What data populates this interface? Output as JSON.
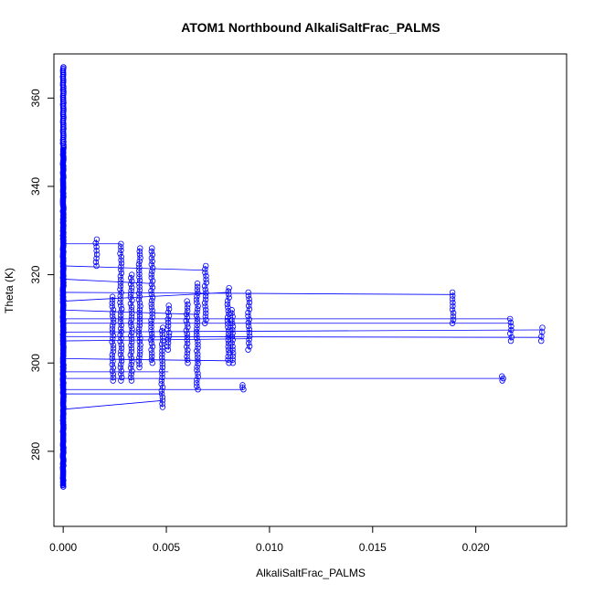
{
  "chart_data": {
    "type": "scatter",
    "title": "ATOM1 Northbound AlkaliSaltFrac_PALMS",
    "xlabel": "AlkaliSaltFrac_PALMS",
    "ylabel": "Theta (K)",
    "xlim": [
      -0.00045,
      0.0244
    ],
    "ylim": [
      263,
      370
    ],
    "x_ticks": [
      0.0,
      0.005,
      0.01,
      0.015,
      0.02
    ],
    "x_tick_labels": [
      "0.000",
      "0.005",
      "0.010",
      "0.015",
      "0.020"
    ],
    "y_ticks": [
      280,
      300,
      320,
      340,
      360
    ],
    "y_tick_labels": [
      "280",
      "300",
      "320",
      "340",
      "360"
    ],
    "series_color": "#0000ff",
    "marker": "open-circle",
    "connected": true,
    "grid": false,
    "zero_column": {
      "x": 0.0,
      "y_min": 272,
      "y_max": 367
    },
    "clusters": [
      {
        "x": 0.0016,
        "y_min": 322,
        "y_max": 328
      },
      {
        "x": 0.0024,
        "y_min": 296,
        "y_max": 315
      },
      {
        "x": 0.0028,
        "y_min": 296,
        "y_max": 327
      },
      {
        "x": 0.0033,
        "y_min": 296,
        "y_max": 320
      },
      {
        "x": 0.0037,
        "y_min": 299,
        "y_max": 326
      },
      {
        "x": 0.0043,
        "y_min": 300,
        "y_max": 326
      },
      {
        "x": 0.0048,
        "y_min": 290,
        "y_max": 308
      },
      {
        "x": 0.0051,
        "y_min": 303,
        "y_max": 313
      },
      {
        "x": 0.006,
        "y_min": 300,
        "y_max": 314
      },
      {
        "x": 0.0065,
        "y_min": 294,
        "y_max": 318
      },
      {
        "x": 0.0069,
        "y_min": 309,
        "y_max": 322
      },
      {
        "x": 0.008,
        "y_min": 300,
        "y_max": 317
      },
      {
        "x": 0.0082,
        "y_min": 300,
        "y_max": 312
      },
      {
        "x": 0.0087,
        "y_min": 294,
        "y_max": 295
      },
      {
        "x": 0.009,
        "y_min": 303,
        "y_max": 316
      },
      {
        "x": 0.0189,
        "y_min": 309,
        "y_max": 316
      },
      {
        "x": 0.0213,
        "y_min": 296,
        "y_max": 297
      },
      {
        "x": 0.0217,
        "y_min": 305,
        "y_max": 310
      },
      {
        "x": 0.0232,
        "y_min": 305,
        "y_max": 308
      }
    ],
    "connectors": [
      {
        "from": [
          0.0,
          327
        ],
        "to": [
          0.0028,
          327
        ]
      },
      {
        "from": [
          0.0,
          322
        ],
        "to": [
          0.0069,
          321
        ]
      },
      {
        "from": [
          0.0,
          319
        ],
        "to": [
          0.0043,
          318
        ]
      },
      {
        "from": [
          0.0,
          316
        ],
        "to": [
          0.0189,
          315.5
        ]
      },
      {
        "from": [
          0.0,
          314
        ],
        "to": [
          0.008,
          316
        ]
      },
      {
        "from": [
          0.0,
          312
        ],
        "to": [
          0.0065,
          311
        ]
      },
      {
        "from": [
          0.0,
          310
        ],
        "to": [
          0.0217,
          310
        ]
      },
      {
        "from": [
          0.0,
          309
        ],
        "to": [
          0.0217,
          309
        ]
      },
      {
        "from": [
          0.0,
          307
        ],
        "to": [
          0.0232,
          307.5
        ]
      },
      {
        "from": [
          0.0,
          306
        ],
        "to": [
          0.0232,
          305.8
        ]
      },
      {
        "from": [
          0.0,
          305
        ],
        "to": [
          0.009,
          305.5
        ]
      },
      {
        "from": [
          0.0,
          301
        ],
        "to": [
          0.008,
          300.5
        ]
      },
      {
        "from": [
          0.0,
          298
        ],
        "to": [
          0.0051,
          298
        ]
      },
      {
        "from": [
          0.0,
          296.5
        ],
        "to": [
          0.0213,
          296.5
        ]
      },
      {
        "from": [
          0.0,
          294
        ],
        "to": [
          0.0087,
          294
        ]
      },
      {
        "from": [
          0.0,
          293
        ],
        "to": [
          0.0048,
          293
        ]
      },
      {
        "from": [
          0.0,
          289.5
        ],
        "to": [
          0.0048,
          291.5
        ]
      }
    ]
  }
}
